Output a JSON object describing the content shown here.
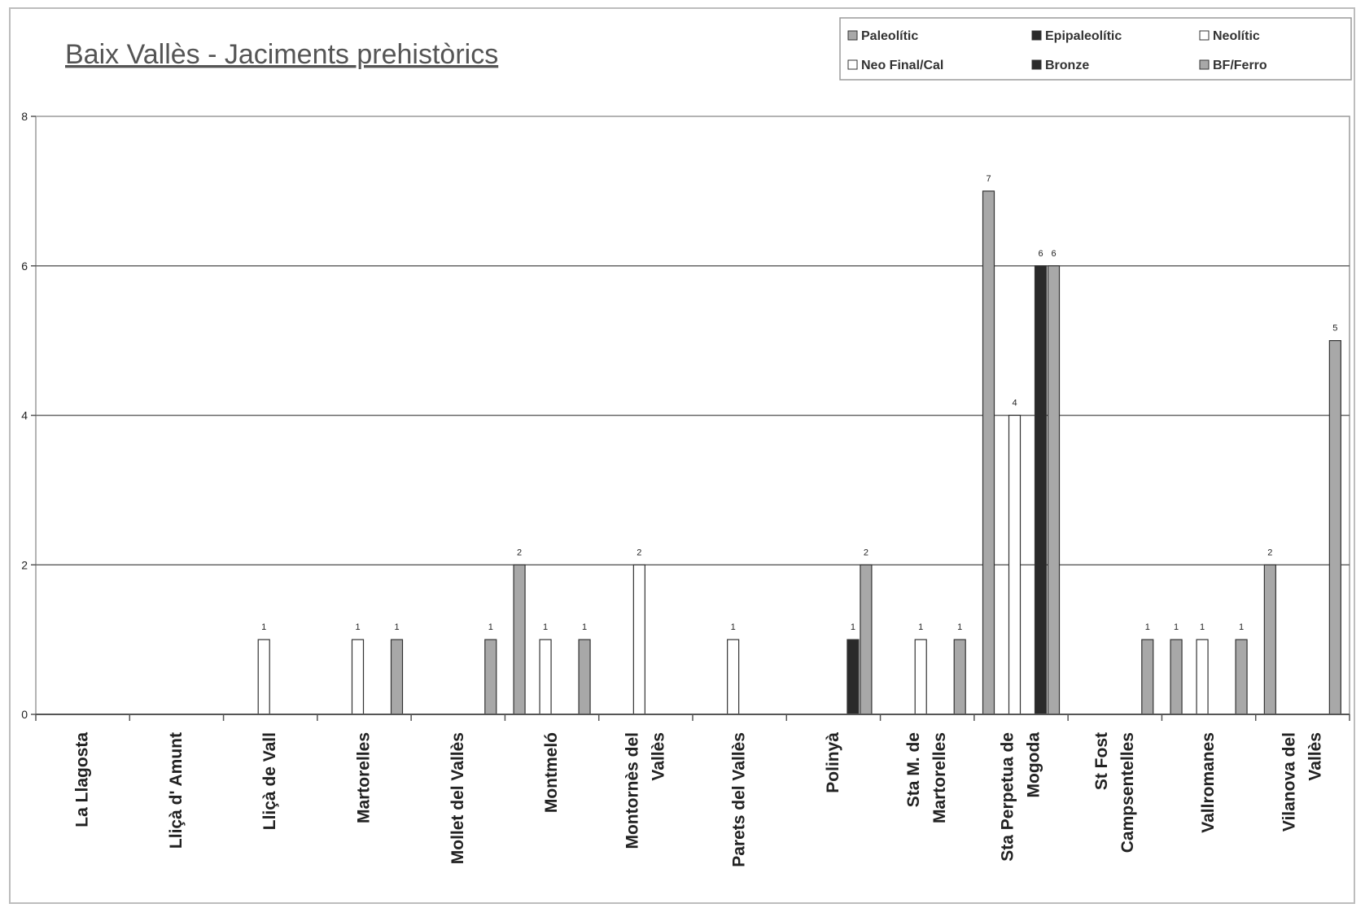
{
  "chart_data": {
    "type": "bar",
    "title": "Baix Vallès - Jaciments prehistòrics",
    "xlabel": "",
    "ylabel": "",
    "ylim": [
      0,
      8
    ],
    "yticks": [
      0,
      2,
      4,
      6,
      8
    ],
    "grid": true,
    "legend_position": "top-right",
    "categories": [
      [
        "La Llagosta"
      ],
      [
        "Lliçà d' Amunt"
      ],
      [
        "Lliçà de Vall"
      ],
      [
        "Martorelles"
      ],
      [
        "Mollet del Vallès"
      ],
      [
        "Montmeló"
      ],
      [
        "Montornès del",
        "Vallès"
      ],
      [
        "Parets del Vallès"
      ],
      [
        "Polinyà"
      ],
      [
        "Sta M. de",
        "Martorelles"
      ],
      [
        "Sta Perpetua de",
        "Mogoda"
      ],
      [
        "St Fost",
        "Campsentelles"
      ],
      [
        "Vallromanes"
      ],
      [
        "Vilanova del",
        "Vallès"
      ]
    ],
    "series": [
      {
        "name": "Paleolític",
        "color": "#a8a8a8",
        "values": [
          0,
          0,
          0,
          0,
          0,
          2,
          0,
          0,
          0,
          0,
          7,
          0,
          1,
          2
        ]
      },
      {
        "name": "Epipaleolític",
        "color": "#2a2a2a",
        "values": [
          0,
          0,
          0,
          0,
          0,
          0,
          0,
          0,
          0,
          0,
          0,
          0,
          0,
          0
        ]
      },
      {
        "name": "Neolític",
        "color": "#ffffff",
        "values": [
          0,
          0,
          1,
          1,
          0,
          1,
          2,
          1,
          0,
          1,
          4,
          0,
          1,
          0
        ]
      },
      {
        "name": "Neo Final/Cal",
        "color": "#ffffff",
        "values": [
          0,
          0,
          0,
          0,
          0,
          0,
          0,
          0,
          0,
          0,
          0,
          0,
          0,
          0
        ]
      },
      {
        "name": "Bronze",
        "color": "#2a2a2a",
        "values": [
          0,
          0,
          0,
          0,
          0,
          0,
          0,
          0,
          1,
          0,
          6,
          0,
          0,
          0
        ]
      },
      {
        "name": "BF/Ferro",
        "color": "#a8a8a8",
        "values": [
          0,
          0,
          0,
          1,
          1,
          1,
          0,
          0,
          2,
          1,
          6,
          1,
          1,
          5
        ]
      }
    ]
  },
  "legend": {
    "items": [
      {
        "label": "Paleolític",
        "swatch": "#a8a8a8"
      },
      {
        "label": "Epipaleolític",
        "swatch": "#2a2a2a"
      },
      {
        "label": "Neolític",
        "swatch": "#ffffff"
      },
      {
        "label": "Neo Final/Cal",
        "swatch": "#ffffff"
      },
      {
        "label": "Bronze",
        "swatch": "#2a2a2a"
      },
      {
        "label": "BF/Ferro",
        "swatch": "#a8a8a8"
      }
    ]
  }
}
